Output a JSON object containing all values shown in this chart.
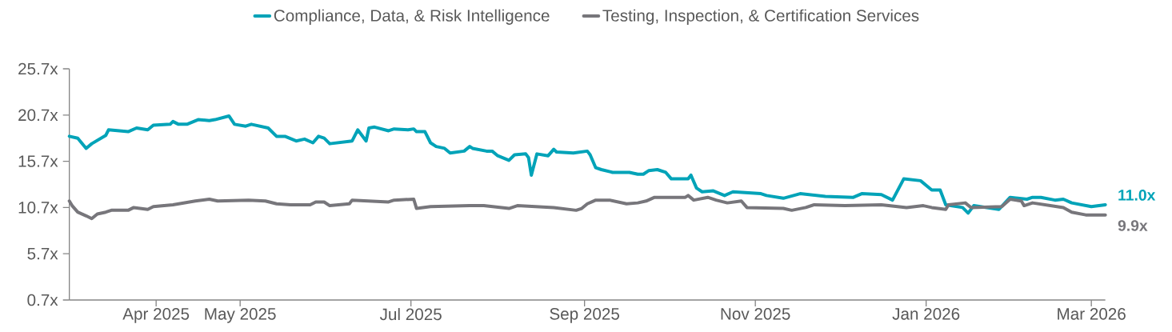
{
  "chart_data": {
    "type": "line",
    "series": [
      {
        "name": "Compliance, Data, & Risk Intelligence",
        "color": "#00a3b8",
        "x": [
          "2025-03-01",
          "2025-03-04",
          "2025-03-07",
          "2025-03-09",
          "2025-03-14",
          "2025-03-15",
          "2025-03-22",
          "2025-03-25",
          "2025-03-29",
          "2025-03-31",
          "2025-04-06",
          "2025-04-07",
          "2025-04-09",
          "2025-04-12",
          "2025-04-16",
          "2025-04-20",
          "2025-04-22",
          "2025-04-27",
          "2025-04-29",
          "2025-05-03",
          "2025-05-05",
          "2025-05-11",
          "2025-05-14",
          "2025-05-17",
          "2025-05-21",
          "2025-05-24",
          "2025-05-27",
          "2025-05-29",
          "2025-05-31",
          "2025-06-02",
          "2025-06-10",
          "2025-06-12",
          "2025-06-15",
          "2025-06-16",
          "2025-06-18",
          "2025-06-23",
          "2025-06-25",
          "2025-06-30",
          "2025-07-02",
          "2025-07-03",
          "2025-07-06",
          "2025-07-08",
          "2025-07-10",
          "2025-07-13",
          "2025-07-15",
          "2025-07-20",
          "2025-07-22",
          "2025-07-23",
          "2025-07-28",
          "2025-07-30",
          "2025-08-01",
          "2025-08-05",
          "2025-08-07",
          "2025-08-11",
          "2025-08-12",
          "2025-08-13",
          "2025-08-15",
          "2025-08-19",
          "2025-08-21",
          "2025-08-22",
          "2025-08-28",
          "2025-09-02",
          "2025-09-03",
          "2025-09-05",
          "2025-09-07",
          "2025-09-11",
          "2025-09-17",
          "2025-09-20",
          "2025-09-22",
          "2025-09-24",
          "2025-09-27",
          "2025-09-30",
          "2025-10-02",
          "2025-10-08",
          "2025-10-09",
          "2025-10-11",
          "2025-10-13",
          "2025-10-17",
          "2025-10-21",
          "2025-10-24",
          "2025-11-03",
          "2025-11-05",
          "2025-11-11",
          "2025-11-17",
          "2025-11-26",
          "2025-12-06",
          "2025-12-09",
          "2025-12-16",
          "2025-12-20",
          "2025-12-24",
          "2025-12-30",
          "2026-01-03",
          "2026-01-06",
          "2026-01-08",
          "2026-01-14",
          "2026-01-16",
          "2026-01-18",
          "2026-01-27",
          "2026-01-31",
          "2026-02-06",
          "2026-02-08",
          "2026-02-11",
          "2026-02-16",
          "2026-02-19",
          "2026-02-22",
          "2026-03-01",
          "2026-03-06"
        ],
        "values": [
          18.4,
          18.2,
          17.1,
          17.6,
          18.5,
          19.1,
          18.9,
          19.3,
          19.1,
          19.6,
          19.7,
          20.0,
          19.7,
          19.7,
          20.2,
          20.1,
          20.2,
          20.6,
          19.7,
          19.5,
          19.7,
          19.3,
          18.4,
          18.4,
          17.9,
          18.1,
          17.7,
          18.4,
          18.2,
          17.6,
          17.9,
          19.1,
          17.9,
          19.3,
          19.4,
          19.0,
          19.2,
          19.1,
          19.2,
          18.9,
          18.9,
          17.7,
          17.3,
          17.1,
          16.6,
          16.8,
          17.3,
          17.1,
          16.8,
          16.8,
          16.3,
          15.8,
          16.4,
          16.5,
          16.1,
          14.2,
          16.5,
          16.3,
          17.0,
          16.7,
          16.6,
          16.8,
          16.4,
          15.0,
          14.8,
          14.5,
          14.5,
          14.3,
          14.3,
          14.7,
          14.8,
          14.5,
          13.8,
          13.8,
          14.2,
          12.8,
          12.4,
          12.5,
          12.0,
          12.4,
          12.2,
          12.0,
          11.7,
          12.2,
          11.9,
          11.8,
          12.2,
          12.1,
          11.5,
          13.8,
          13.6,
          12.6,
          12.6,
          11.0,
          10.7,
          10.1,
          10.9,
          10.5,
          11.8,
          11.6,
          11.8,
          11.8,
          11.5,
          11.6,
          11.2,
          10.8,
          11.0
        ]
      },
      {
        "name": "Testing, Inspection, & Certification Services",
        "color": "#77767b",
        "x": [
          "2025-03-01",
          "2025-03-02",
          "2025-03-04",
          "2025-03-07",
          "2025-03-09",
          "2025-03-11",
          "2025-03-14",
          "2025-03-16",
          "2025-03-22",
          "2025-03-24",
          "2025-03-29",
          "2025-03-31",
          "2025-04-07",
          "2025-04-15",
          "2025-04-20",
          "2025-04-23",
          "2025-05-04",
          "2025-05-10",
          "2025-05-14",
          "2025-05-19",
          "2025-05-26",
          "2025-05-28",
          "2025-05-31",
          "2025-06-02",
          "2025-06-09",
          "2025-06-10",
          "2025-06-23",
          "2025-06-25",
          "2025-07-02",
          "2025-07-03",
          "2025-07-08",
          "2025-07-22",
          "2025-07-27",
          "2025-08-05",
          "2025-08-08",
          "2025-08-21",
          "2025-08-29",
          "2025-08-31",
          "2025-09-02",
          "2025-09-05",
          "2025-09-10",
          "2025-09-16",
          "2025-09-20",
          "2025-09-23",
          "2025-09-26",
          "2025-10-07",
          "2025-10-08",
          "2025-10-10",
          "2025-10-15",
          "2025-10-18",
          "2025-10-22",
          "2025-10-27",
          "2025-10-29",
          "2025-11-11",
          "2025-11-14",
          "2025-11-19",
          "2025-11-22",
          "2025-12-03",
          "2025-12-16",
          "2025-12-25",
          "2025-12-31",
          "2026-01-03",
          "2026-01-08",
          "2026-01-09",
          "2026-01-15",
          "2026-01-17",
          "2026-01-28",
          "2026-01-31",
          "2026-02-04",
          "2026-02-05",
          "2026-02-08",
          "2026-02-19",
          "2026-02-22",
          "2026-02-27",
          "2026-03-06"
        ],
        "values": [
          11.4,
          10.9,
          10.2,
          9.8,
          9.5,
          10.0,
          10.2,
          10.4,
          10.4,
          10.7,
          10.5,
          10.8,
          11.0,
          11.4,
          11.6,
          11.4,
          11.5,
          11.4,
          11.1,
          11.0,
          11.0,
          11.3,
          11.3,
          10.9,
          11.1,
          11.5,
          11.3,
          11.5,
          11.6,
          10.6,
          10.8,
          10.9,
          10.9,
          10.6,
          10.9,
          10.7,
          10.4,
          10.6,
          11.1,
          11.5,
          11.5,
          11.1,
          11.2,
          11.4,
          11.8,
          11.8,
          12.0,
          11.5,
          11.8,
          11.5,
          11.2,
          11.4,
          10.7,
          10.6,
          10.4,
          10.7,
          11.0,
          10.9,
          11.0,
          10.7,
          10.9,
          10.7,
          10.5,
          11.0,
          11.2,
          10.7,
          10.8,
          11.6,
          11.4,
          10.9,
          11.2,
          10.7,
          10.2,
          9.9,
          9.9
        ]
      }
    ],
    "annotations": [
      {
        "text": "11.0x",
        "x": "2026-03-06",
        "y": 11.0
      },
      {
        "text": "9.9x",
        "x": "2026-03-06",
        "y": 9.9
      }
    ],
    "xlim": [
      "2025-03-01",
      "2026-03-06"
    ],
    "xticks": [
      {
        "value": "2025-04-01",
        "label": "Apr 2025"
      },
      {
        "value": "2025-05-01",
        "label": "May 2025"
      },
      {
        "value": "2025-07-01",
        "label": "Jul 2025"
      },
      {
        "value": "2025-09-01",
        "label": "Sep 2025"
      },
      {
        "value": "2025-11-01",
        "label": "Nov 2025"
      },
      {
        "value": "2026-01-01",
        "label": "Jan 2026"
      },
      {
        "value": "2026-03-01",
        "label": "Mar 2026"
      }
    ],
    "ylim": [
      0.7,
      25.7
    ],
    "yticks": [
      {
        "value": 0.7,
        "label": "0.7x"
      },
      {
        "value": 5.7,
        "label": "5.7x"
      },
      {
        "value": 10.7,
        "label": "10.7x"
      },
      {
        "value": 15.7,
        "label": "15.7x"
      },
      {
        "value": 20.7,
        "label": "20.7x"
      },
      {
        "value": 25.7,
        "label": "25.7x"
      }
    ],
    "grid": false,
    "legend": "top",
    "marker": "none",
    "line_style": "solid"
  }
}
